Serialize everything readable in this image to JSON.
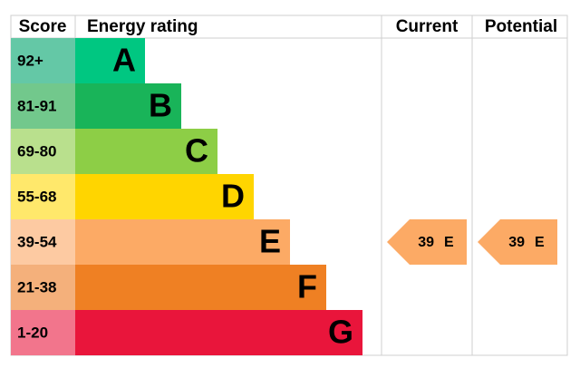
{
  "header": {
    "score": "Score",
    "rating": "Energy rating",
    "current": "Current",
    "potential": "Potential"
  },
  "bands": [
    {
      "score": "92+",
      "letter": "A",
      "color": "#00c781",
      "score_color": "#64c8a6"
    },
    {
      "score": "81-91",
      "letter": "B",
      "color": "#19b459",
      "score_color": "#72c88c"
    },
    {
      "score": "69-80",
      "letter": "C",
      "color": "#8dce46",
      "score_color": "#b9e08d"
    },
    {
      "score": "55-68",
      "letter": "D",
      "color": "#ffd500",
      "score_color": "#ffe86b"
    },
    {
      "score": "39-54",
      "letter": "E",
      "color": "#fcaa65",
      "score_color": "#fdcaa2"
    },
    {
      "score": "21-38",
      "letter": "F",
      "color": "#ef8023",
      "score_color": "#f4b07b"
    },
    {
      "score": "1-20",
      "letter": "G",
      "color": "#e9153b",
      "score_color": "#f2758c"
    }
  ],
  "current": {
    "value": 39,
    "letter": "E"
  },
  "potential": {
    "value": 39,
    "letter": "E"
  }
}
